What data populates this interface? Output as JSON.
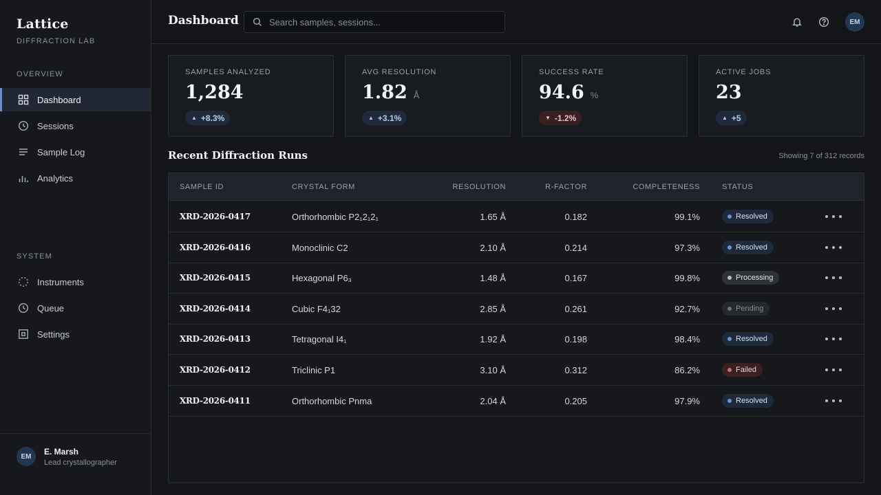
{
  "brand": {
    "name": "Lattice",
    "subtitle": "DIFFRACTION LAB"
  },
  "sidebar": {
    "overview_label": "OVERVIEW",
    "overview_items": [
      {
        "label": "Dashboard",
        "icon": "grid-icon",
        "active": true
      },
      {
        "label": "Sessions",
        "icon": "clock-icon"
      },
      {
        "label": "Sample Log",
        "icon": "list-icon"
      },
      {
        "label": "Analytics",
        "icon": "bar-chart-icon"
      }
    ],
    "system_label": "SYSTEM",
    "system_items": [
      {
        "label": "Instruments",
        "icon": "dotted-circle-icon"
      },
      {
        "label": "Queue",
        "icon": "clock-icon"
      },
      {
        "label": "Settings",
        "icon": "settings-square-icon"
      }
    ],
    "user": {
      "initials": "EM",
      "name": "E. Marsh",
      "role": "Lead crystallographer"
    }
  },
  "header": {
    "title": "Dashboard",
    "search_placeholder": "Search samples, sessions...",
    "avatar_initials": "EM"
  },
  "stats": [
    {
      "label": "SAMPLES ANALYZED",
      "value": "1,284",
      "unit": "",
      "delta": "+8.3%",
      "trend": "up"
    },
    {
      "label": "AVG RESOLUTION",
      "value": "1.82",
      "unit": "Å",
      "delta": "+3.1%",
      "trend": "up"
    },
    {
      "label": "SUCCESS RATE",
      "value": "94.6",
      "unit": "%",
      "delta": "-1.2%",
      "trend": "down"
    },
    {
      "label": "ACTIVE JOBS",
      "value": "23",
      "unit": "",
      "delta": "+5",
      "trend": "up"
    }
  ],
  "runs": {
    "title": "Recent Diffraction Runs",
    "count_text": "Showing 7 of 312 records",
    "columns": [
      "SAMPLE ID",
      "CRYSTAL FORM",
      "RESOLUTION",
      "R-FACTOR",
      "COMPLETENESS",
      "STATUS"
    ],
    "rows": [
      {
        "id": "XRD-2026-0417",
        "form": "Orthorhombic P2₁2₁2₁",
        "resolution": "1.65 Å",
        "rfactor": "0.182",
        "completeness": "99.1%",
        "status": "Resolved",
        "kind": "resolved"
      },
      {
        "id": "XRD-2026-0416",
        "form": "Monoclinic C2",
        "resolution": "2.10 Å",
        "rfactor": "0.214",
        "completeness": "97.3%",
        "status": "Resolved",
        "kind": "resolved"
      },
      {
        "id": "XRD-2026-0415",
        "form": "Hexagonal P6₃",
        "resolution": "1.48 Å",
        "rfactor": "0.167",
        "completeness": "99.8%",
        "status": "Processing",
        "kind": "processing"
      },
      {
        "id": "XRD-2026-0414",
        "form": "Cubic F4₁32",
        "resolution": "2.85 Å",
        "rfactor": "0.261",
        "completeness": "92.7%",
        "status": "Pending",
        "kind": "pending"
      },
      {
        "id": "XRD-2026-0413",
        "form": "Tetragonal I4₁",
        "resolution": "1.92 Å",
        "rfactor": "0.198",
        "completeness": "98.4%",
        "status": "Resolved",
        "kind": "resolved"
      },
      {
        "id": "XRD-2026-0412",
        "form": "Triclinic P1",
        "resolution": "3.10 Å",
        "rfactor": "0.312",
        "completeness": "86.2%",
        "status": "Failed",
        "kind": "failed"
      },
      {
        "id": "XRD-2026-0411",
        "form": "Orthorhombic Pnma",
        "resolution": "2.04 Å",
        "rfactor": "0.205",
        "completeness": "97.9%",
        "status": "Resolved",
        "kind": "resolved"
      }
    ]
  }
}
